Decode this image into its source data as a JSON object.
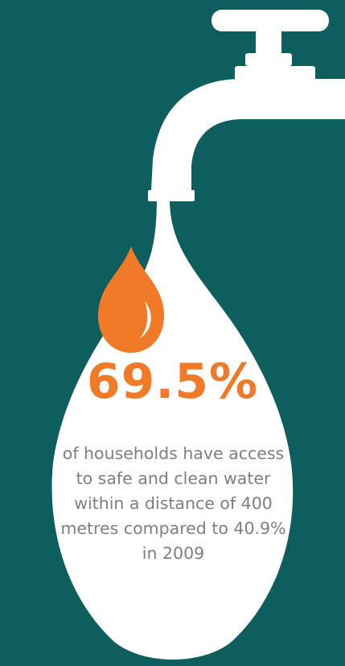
{
  "stat": {
    "value": "69.5%",
    "description": "of households have access to safe and clean water within a distance of 400 metres compared to 40.9% in 2009"
  },
  "icons": {
    "tap": "water-tap-icon",
    "drop": "orange-water-drop-icon",
    "stream": "white-water-drop-shape"
  },
  "colors": {
    "background": "#0d5e5c",
    "accent": "#f07a28",
    "drop_fill": "#ffffff",
    "text": "#7a8083"
  }
}
